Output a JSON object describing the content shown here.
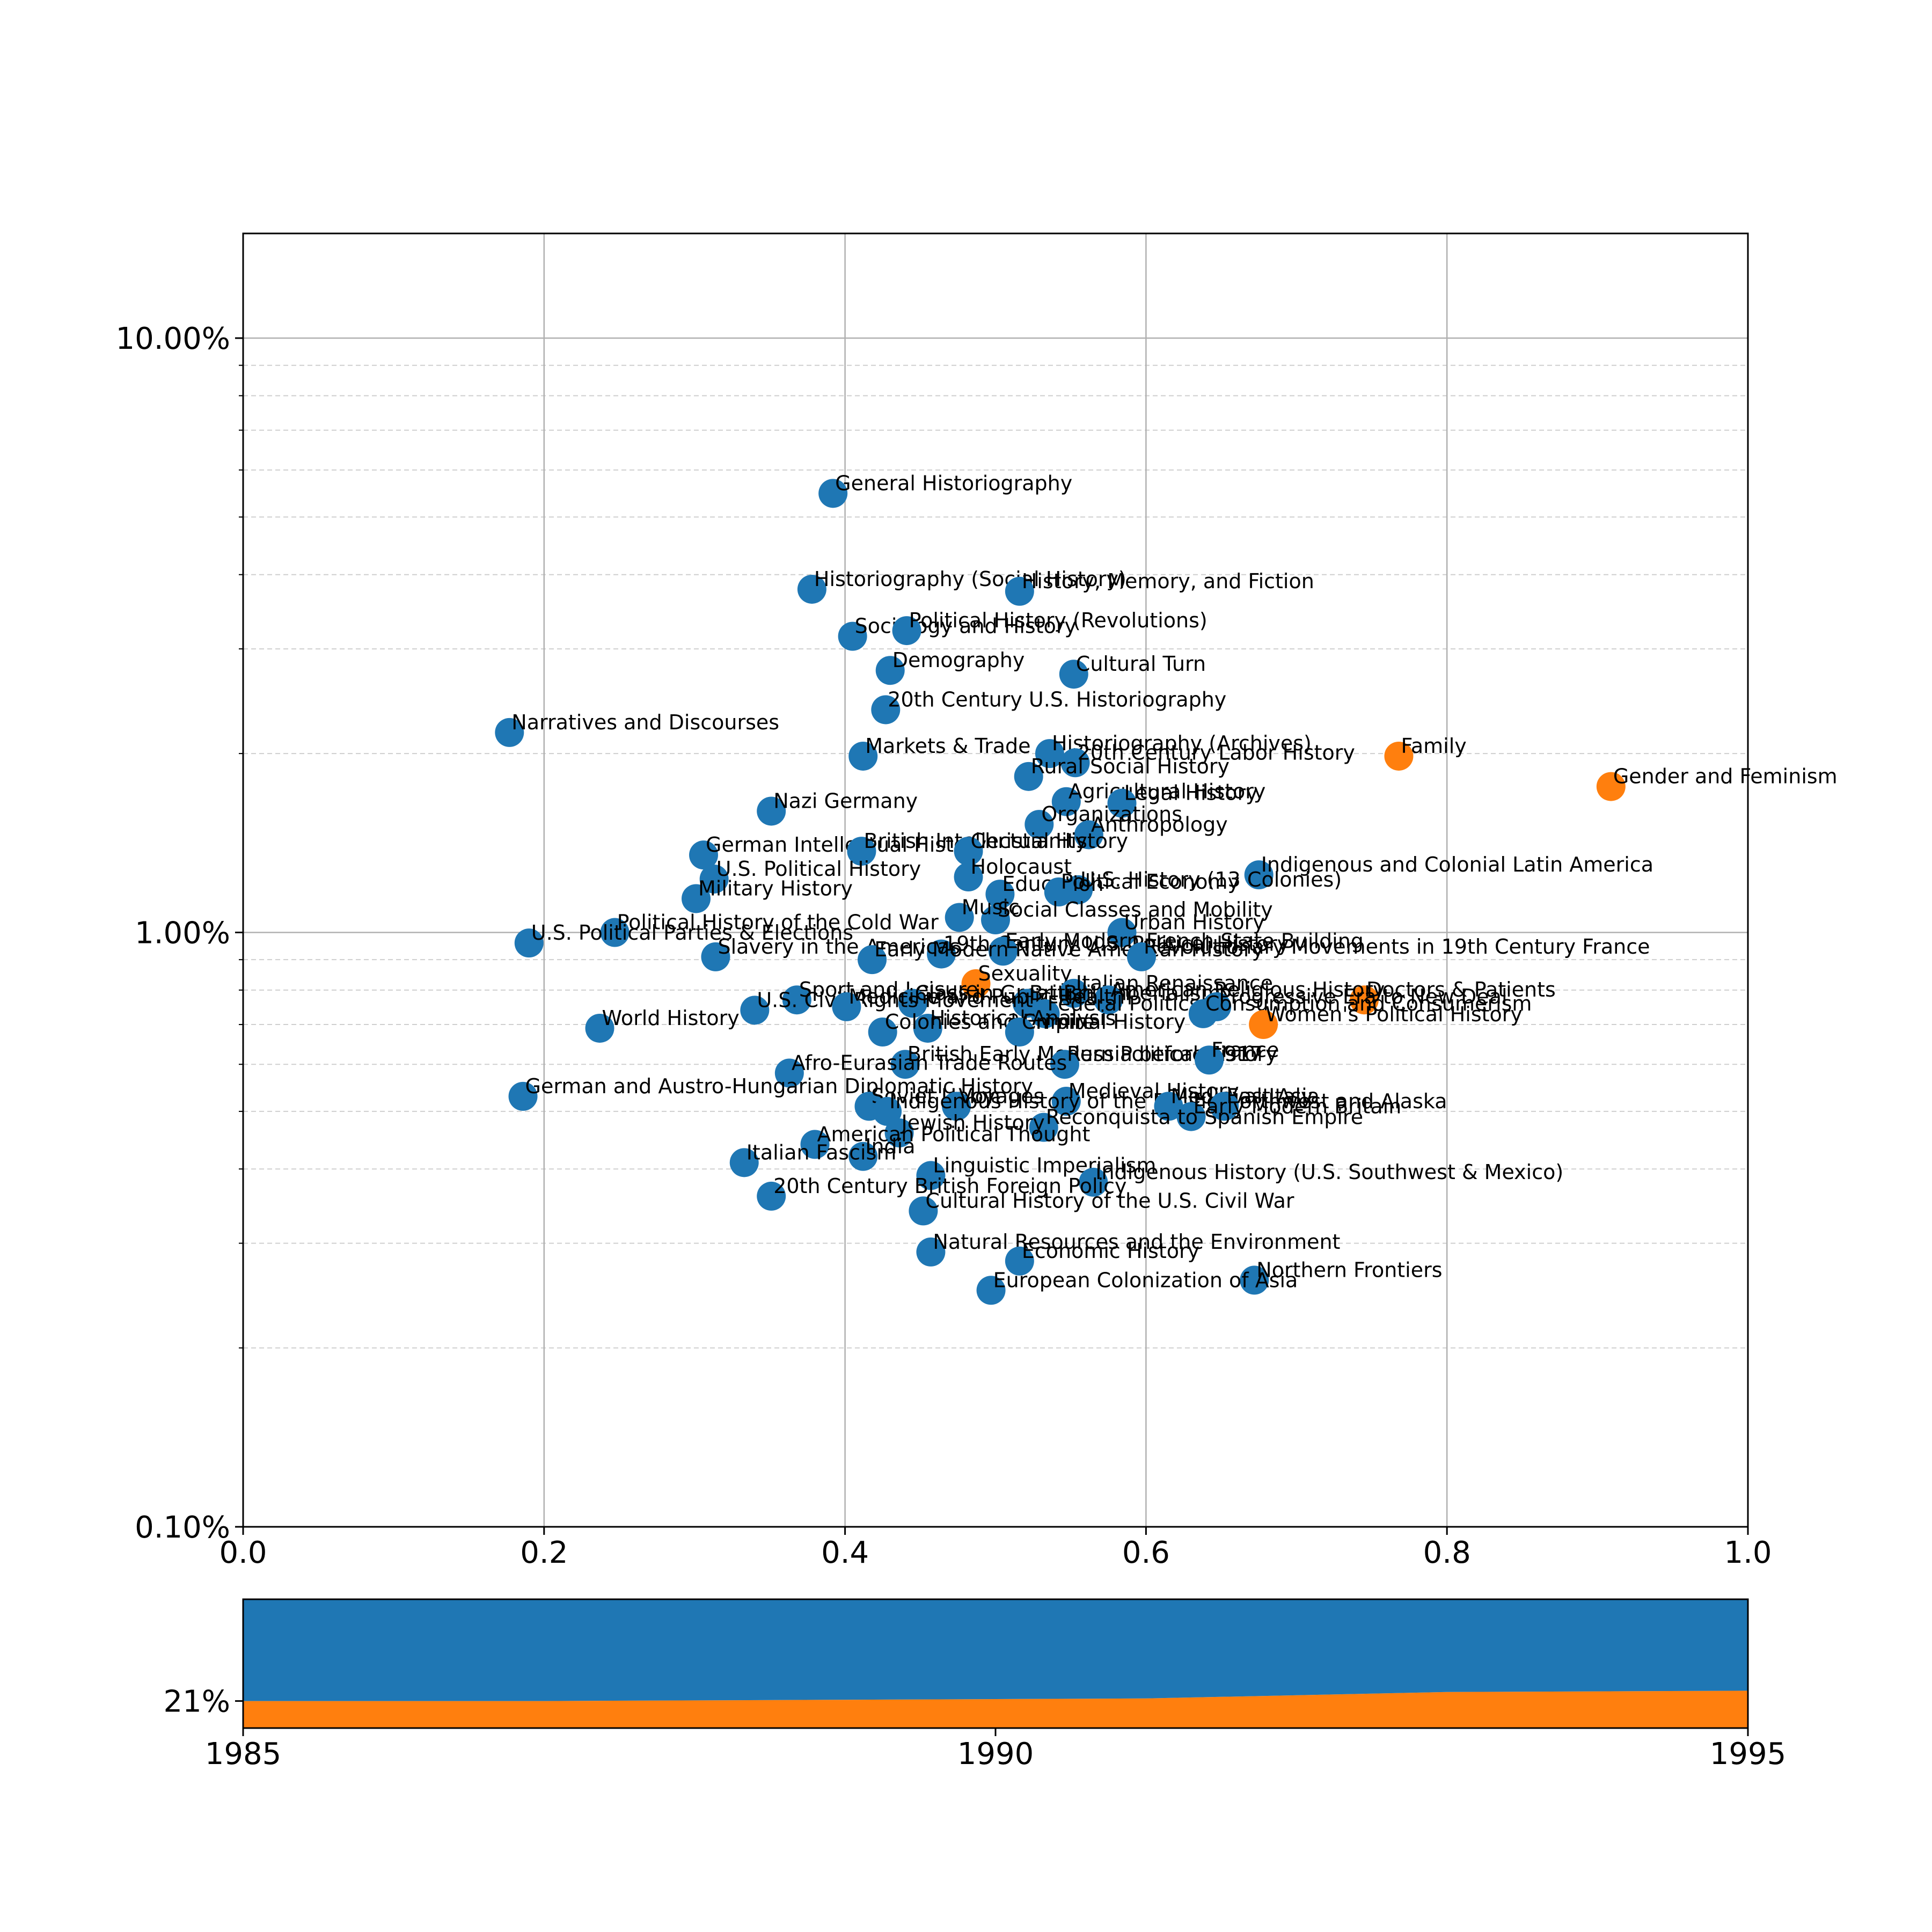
{
  "colors": {
    "blue": "#1f77b4",
    "orange": "#ff7f0e",
    "grid": "#b0b0b0",
    "axis": "#000000"
  },
  "chart_data": [
    {
      "type": "scatter",
      "x_scale": "linear",
      "y_scale": "log",
      "xlim": [
        0.0,
        1.0
      ],
      "ylim": [
        0.001,
        0.15
      ],
      "x_tick_labels": [
        "0.0",
        "0.2",
        "0.4",
        "0.6",
        "0.8",
        "1.0"
      ],
      "x_ticks": [
        0.0,
        0.2,
        0.4,
        0.6,
        0.8,
        1.0
      ],
      "y_tick_labels": [
        "0.10%",
        "1.00%",
        "10.00%"
      ],
      "y_ticks": [
        0.001,
        0.01,
        0.1
      ],
      "grid": true,
      "points": [
        {
          "label": "General Historiography",
          "x": 0.392,
          "y": 0.0548,
          "group": "blue"
        },
        {
          "label": "Historiography (Social History)",
          "x": 0.378,
          "y": 0.0378,
          "group": "blue"
        },
        {
          "label": "History, Memory, and Fiction",
          "x": 0.516,
          "y": 0.0375,
          "group": "blue"
        },
        {
          "label": "Sociology and History",
          "x": 0.405,
          "y": 0.0315,
          "group": "blue"
        },
        {
          "label": "Political History (Revolutions)",
          "x": 0.441,
          "y": 0.0322,
          "group": "blue"
        },
        {
          "label": "Demography",
          "x": 0.43,
          "y": 0.0276,
          "group": "blue"
        },
        {
          "label": "Cultural Turn",
          "x": 0.552,
          "y": 0.0272,
          "group": "blue"
        },
        {
          "label": "20th Century U.S. Historiography",
          "x": 0.427,
          "y": 0.0237,
          "group": "blue"
        },
        {
          "label": "Narratives and Discourses",
          "x": 0.177,
          "y": 0.0217,
          "group": "blue"
        },
        {
          "label": "Markets & Trade",
          "x": 0.412,
          "y": 0.0198,
          "group": "blue"
        },
        {
          "label": "Historiography (Archives)",
          "x": 0.536,
          "y": 0.02,
          "group": "blue"
        },
        {
          "label": "20th Century Labor History",
          "x": 0.553,
          "y": 0.0193,
          "group": "blue"
        },
        {
          "label": "Rural Social History",
          "x": 0.522,
          "y": 0.0183,
          "group": "blue"
        },
        {
          "label": "Family",
          "x": 0.768,
          "y": 0.0198,
          "group": "orange"
        },
        {
          "label": "Gender and Feminism",
          "x": 0.909,
          "y": 0.0176,
          "group": "orange"
        },
        {
          "label": "Agricultural History",
          "x": 0.547,
          "y": 0.0166,
          "group": "blue"
        },
        {
          "label": "Legal History",
          "x": 0.584,
          "y": 0.0165,
          "group": "blue"
        },
        {
          "label": "Nazi Germany",
          "x": 0.351,
          "y": 0.016,
          "group": "blue"
        },
        {
          "label": "Organizations",
          "x": 0.529,
          "y": 0.0152,
          "group": "blue"
        },
        {
          "label": "Anthropology",
          "x": 0.562,
          "y": 0.0146,
          "group": "blue"
        },
        {
          "label": "German Intellectual History",
          "x": 0.306,
          "y": 0.0135,
          "group": "blue"
        },
        {
          "label": "British Intellectual History",
          "x": 0.411,
          "y": 0.0137,
          "group": "blue"
        },
        {
          "label": "Christianity",
          "x": 0.482,
          "y": 0.0137,
          "group": "blue"
        },
        {
          "label": "Indigenous and Colonial Latin America",
          "x": 0.675,
          "y": 0.0125,
          "group": "blue"
        },
        {
          "label": "U.S. Political History",
          "x": 0.313,
          "y": 0.0123,
          "group": "blue"
        },
        {
          "label": "Holocaust",
          "x": 0.482,
          "y": 0.0124,
          "group": "blue"
        },
        {
          "label": "U.S. History (13 Colonies)",
          "x": 0.555,
          "y": 0.0118,
          "group": "blue"
        },
        {
          "label": "Education",
          "x": 0.503,
          "y": 0.0116,
          "group": "blue"
        },
        {
          "label": "Political Economy",
          "x": 0.542,
          "y": 0.0117,
          "group": "blue"
        },
        {
          "label": "Military History",
          "x": 0.301,
          "y": 0.0114,
          "group": "blue"
        },
        {
          "label": "Social Classes and Mobility",
          "x": 0.5,
          "y": 0.0105,
          "group": "blue"
        },
        {
          "label": "Music",
          "x": 0.476,
          "y": 0.0106,
          "group": "blue"
        },
        {
          "label": "Political History of the Cold War",
          "x": 0.247,
          "y": 0.01,
          "group": "blue"
        },
        {
          "label": "Urban History",
          "x": 0.584,
          "y": 0.01,
          "group": "blue"
        },
        {
          "label": "U.S. Political Parties & Elections",
          "x": 0.19,
          "y": 0.0096,
          "group": "blue"
        },
        {
          "label": "19th Century U.S. Political History",
          "x": 0.464,
          "y": 0.0092,
          "group": "blue"
        },
        {
          "label": "Early Modern French State Building",
          "x": 0.505,
          "y": 0.0093,
          "group": "blue"
        },
        {
          "label": "Slavery in the Americas",
          "x": 0.314,
          "y": 0.0091,
          "group": "blue"
        },
        {
          "label": "Early Modern Native American History",
          "x": 0.418,
          "y": 0.009,
          "group": "blue"
        },
        {
          "label": "Revolutionary Movements in 19th Century France",
          "x": 0.597,
          "y": 0.0091,
          "group": "blue"
        },
        {
          "label": "Sexuality",
          "x": 0.487,
          "y": 0.0082,
          "group": "orange"
        },
        {
          "label": "Italian Renaissance",
          "x": 0.552,
          "y": 0.0079,
          "group": "blue"
        },
        {
          "label": "Doctors & Patients",
          "x": 0.745,
          "y": 0.0077,
          "group": "orange"
        },
        {
          "label": "Sport and Leisure",
          "x": 0.368,
          "y": 0.0077,
          "group": "blue"
        },
        {
          "label": "Class in Great Britain",
          "x": 0.445,
          "y": 0.0076,
          "group": "blue"
        },
        {
          "label": "British Imperialism",
          "x": 0.521,
          "y": 0.0076,
          "group": "blue"
        },
        {
          "label": "American Religious History",
          "x": 0.575,
          "y": 0.0077,
          "group": "blue"
        },
        {
          "label": "Progressive Era to New Deal",
          "x": 0.647,
          "y": 0.0075,
          "group": "blue"
        },
        {
          "label": "U.S. Civil Rights Movement",
          "x": 0.34,
          "y": 0.0074,
          "group": "blue"
        },
        {
          "label": "Medicine and Public Health",
          "x": 0.401,
          "y": 0.0075,
          "group": "blue"
        },
        {
          "label": "Federal Politics",
          "x": 0.533,
          "y": 0.0073,
          "group": "blue"
        },
        {
          "label": "Consumption and Consumerism",
          "x": 0.638,
          "y": 0.0073,
          "group": "blue"
        },
        {
          "label": "Women's Political History",
          "x": 0.678,
          "y": 0.007,
          "group": "orange"
        },
        {
          "label": "World History",
          "x": 0.237,
          "y": 0.0069,
          "group": "blue"
        },
        {
          "label": "Historical Analysis",
          "x": 0.455,
          "y": 0.0069,
          "group": "blue"
        },
        {
          "label": "Colonies and Empire",
          "x": 0.425,
          "y": 0.0068,
          "group": "blue"
        },
        {
          "label": "Criminal History",
          "x": 0.516,
          "y": 0.0068,
          "group": "blue"
        },
        {
          "label": "British Early Modern Political History",
          "x": 0.44,
          "y": 0.006,
          "group": "blue"
        },
        {
          "label": "Russia before 1917",
          "x": 0.546,
          "y": 0.006,
          "group": "blue"
        },
        {
          "label": "France",
          "x": 0.642,
          "y": 0.0061,
          "group": "blue"
        },
        {
          "label": "Afro-Eurasian Trade Routes",
          "x": 0.363,
          "y": 0.0058,
          "group": "blue"
        },
        {
          "label": "German and Austro-Hungarian Diplomatic History",
          "x": 0.186,
          "y": 0.0053,
          "group": "blue"
        },
        {
          "label": "Soviet Union",
          "x": 0.416,
          "y": 0.0051,
          "group": "blue"
        },
        {
          "label": "Voyages",
          "x": 0.474,
          "y": 0.0051,
          "group": "blue"
        },
        {
          "label": "Medieval History",
          "x": 0.547,
          "y": 0.0052,
          "group": "blue"
        },
        {
          "label": "Indigenous History of the Pacific Northwest and Alaska",
          "x": 0.428,
          "y": 0.005,
          "group": "blue"
        },
        {
          "label": "Medieval Italy",
          "x": 0.615,
          "y": 0.0051,
          "group": "blue"
        },
        {
          "label": "East Asia",
          "x": 0.652,
          "y": 0.0051,
          "group": "blue"
        },
        {
          "label": "Early Modern Britain",
          "x": 0.63,
          "y": 0.0049,
          "group": "blue"
        },
        {
          "label": "Reconquista to Spanish Empire",
          "x": 0.532,
          "y": 0.0047,
          "group": "blue"
        },
        {
          "label": "Jewish History",
          "x": 0.436,
          "y": 0.0046,
          "group": "blue"
        },
        {
          "label": "American Political Thought",
          "x": 0.38,
          "y": 0.0044,
          "group": "blue"
        },
        {
          "label": "India",
          "x": 0.412,
          "y": 0.0042,
          "group": "blue"
        },
        {
          "label": "Italian Fascism",
          "x": 0.333,
          "y": 0.0041,
          "group": "blue"
        },
        {
          "label": "Linguistic Imperialism",
          "x": 0.457,
          "y": 0.0039,
          "group": "blue"
        },
        {
          "label": "Indigenous History (U.S. Southwest & Mexico)",
          "x": 0.565,
          "y": 0.0038,
          "group": "blue"
        },
        {
          "label": "20th Century British Foreign Policy",
          "x": 0.351,
          "y": 0.0036,
          "group": "blue"
        },
        {
          "label": "Cultural History of the U.S. Civil War",
          "x": 0.452,
          "y": 0.0034,
          "group": "blue"
        },
        {
          "label": "Natural Resources and the Environment",
          "x": 0.457,
          "y": 0.0029,
          "group": "blue"
        },
        {
          "label": "Economic History",
          "x": 0.516,
          "y": 0.0028,
          "group": "blue"
        },
        {
          "label": "Northern Frontiers",
          "x": 0.672,
          "y": 0.0026,
          "group": "blue"
        },
        {
          "label": "European Colonization of Asia",
          "x": 0.497,
          "y": 0.0025,
          "group": "blue"
        }
      ]
    },
    {
      "type": "area",
      "stacked": true,
      "xlim": [
        1985,
        1995
      ],
      "x_tick_labels": [
        "1985",
        "1990",
        "1995"
      ],
      "x_ticks": [
        1985,
        1990,
        1995
      ],
      "y_tick_labels": [
        "21%"
      ],
      "y_ticks": [
        0.21
      ],
      "ylim": [
        0,
        1
      ],
      "x": [
        1985,
        1987,
        1989,
        1991,
        1993,
        1995
      ],
      "series": [
        {
          "color": "orange",
          "values": [
            0.21,
            0.21,
            0.22,
            0.23,
            0.28,
            0.29
          ]
        },
        {
          "color": "blue",
          "values": [
            0.79,
            0.79,
            0.78,
            0.77,
            0.72,
            0.71
          ]
        }
      ]
    }
  ]
}
